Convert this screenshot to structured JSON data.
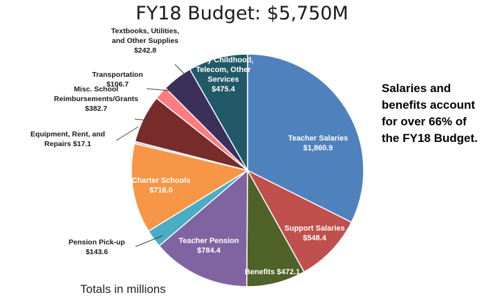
{
  "chart_data": {
    "type": "pie",
    "title": "FY18 Budget: $5,750M",
    "slices": [
      {
        "label": "Teacher Salaries",
        "value": 1860.9,
        "value_text": "$1,860.9",
        "color": "#4f81bd",
        "label_pos": "inside"
      },
      {
        "label": "Support Salaries",
        "value": 548.4,
        "value_text": "$548.4",
        "color": "#c0504d",
        "label_pos": "inside"
      },
      {
        "label": "Benefits",
        "value": 472.1,
        "value_text": "$472.1",
        "color": "#4f6228",
        "label_pos": "inside"
      },
      {
        "label": "Teacher Pension",
        "value": 784.4,
        "value_text": "$784.4",
        "color": "#8064a2",
        "label_pos": "inside"
      },
      {
        "label": "Pension Pick-up",
        "value": 143.6,
        "value_text": "$143.6",
        "color": "#4bacc6",
        "label_pos": "outside"
      },
      {
        "label": "Charter Schools",
        "value": 716.0,
        "value_text": "$716.0",
        "color": "#f79646",
        "label_pos": "inside"
      },
      {
        "label": "Equipment, Rent, and Repairs",
        "value": 17.1,
        "value_text": "$17.1",
        "color": "#bfbfbf",
        "label_pos": "outside"
      },
      {
        "label": "Misc. School Reimbursements/Grants",
        "value": 382.7,
        "value_text": "$382.7",
        "color": "#772c2a",
        "label_pos": "outside"
      },
      {
        "label": "Transportation",
        "value": 106.7,
        "value_text": "$106.7",
        "color": "#ff7c80",
        "label_pos": "outside"
      },
      {
        "label": "Textbooks, Utilities, and Other Supplies",
        "value": 242.8,
        "value_text": "$242.8",
        "color": "#3b3059",
        "label_pos": "outside"
      },
      {
        "label": "Early Childhood, Telecom, Other Services",
        "value": 475.4,
        "value_text": "$475.4",
        "color": "#215968",
        "label_pos": "inside"
      }
    ]
  },
  "callout": "Salaries and benefits account for over 66% of the FY18 Budget.",
  "footnote": "Totals in millions"
}
